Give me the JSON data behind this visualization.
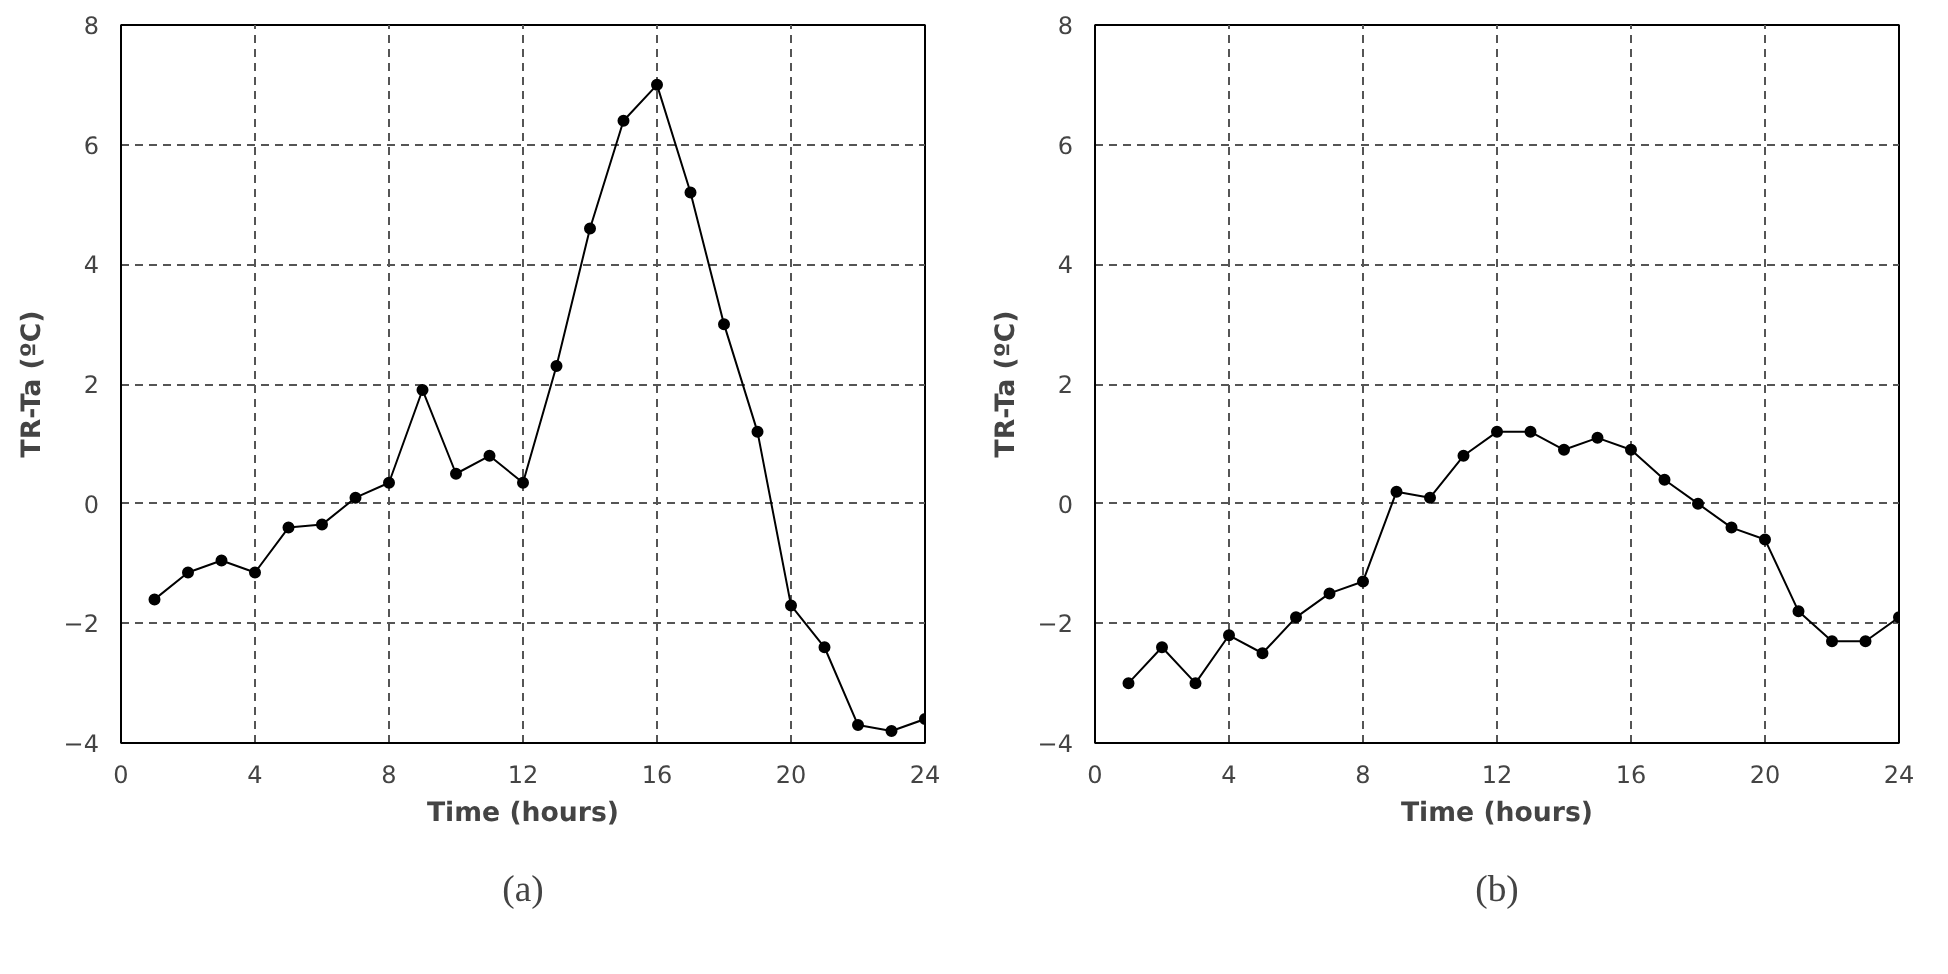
{
  "chart_data": [
    {
      "type": "line",
      "xlabel": "Time (hours)",
      "ylabel": "TR-Ta (ºC)",
      "annotations": [
        "(a)"
      ],
      "x": [
        1,
        2,
        3,
        4,
        5,
        6,
        7,
        8,
        9,
        10,
        11,
        12,
        13,
        14,
        15,
        16,
        17,
        18,
        19,
        20,
        21,
        22,
        23,
        24
      ],
      "xlim": [
        0,
        24
      ],
      "xticks": [
        0,
        4,
        8,
        12,
        16,
        20,
        24
      ],
      "ylim": [
        -4,
        8
      ],
      "yticks": [
        -4,
        -2,
        0,
        2,
        4,
        6,
        8
      ],
      "grid": true,
      "marker": "circle",
      "line_style": "solid",
      "series": [
        {
          "color": "#000000",
          "values": [
            -1.6,
            -1.15,
            -0.95,
            -1.15,
            -0.4,
            -0.35,
            0.1,
            0.35,
            1.9,
            0.5,
            0.8,
            0.35,
            2.3,
            4.6,
            6.4,
            7.0,
            5.2,
            3.0,
            1.2,
            -1.7,
            -2.4,
            -3.7,
            -3.8,
            -3.6
          ]
        }
      ]
    },
    {
      "type": "line",
      "xlabel": "Time (hours)",
      "ylabel": "TR-Ta (ºC)",
      "annotations": [
        "(b)"
      ],
      "x": [
        1,
        2,
        3,
        4,
        5,
        6,
        7,
        8,
        9,
        10,
        11,
        12,
        13,
        14,
        15,
        16,
        17,
        18,
        19,
        20,
        21,
        22,
        23,
        24
      ],
      "xlim": [
        0,
        24
      ],
      "xticks": [
        0,
        4,
        8,
        12,
        16,
        20,
        24
      ],
      "ylim": [
        -4,
        8
      ],
      "yticks": [
        -4,
        -2,
        0,
        2,
        4,
        6,
        8
      ],
      "grid": true,
      "marker": "circle",
      "line_style": "solid",
      "series": [
        {
          "color": "#000000",
          "values": [
            -3.0,
            -2.4,
            -3.0,
            -2.2,
            -2.5,
            -1.9,
            -1.5,
            -1.3,
            0.2,
            0.1,
            0.8,
            1.2,
            1.2,
            0.9,
            1.1,
            0.9,
            0.4,
            0.0,
            -0.4,
            -0.6,
            -1.8,
            -2.3,
            -2.3,
            -1.9
          ]
        }
      ]
    }
  ]
}
